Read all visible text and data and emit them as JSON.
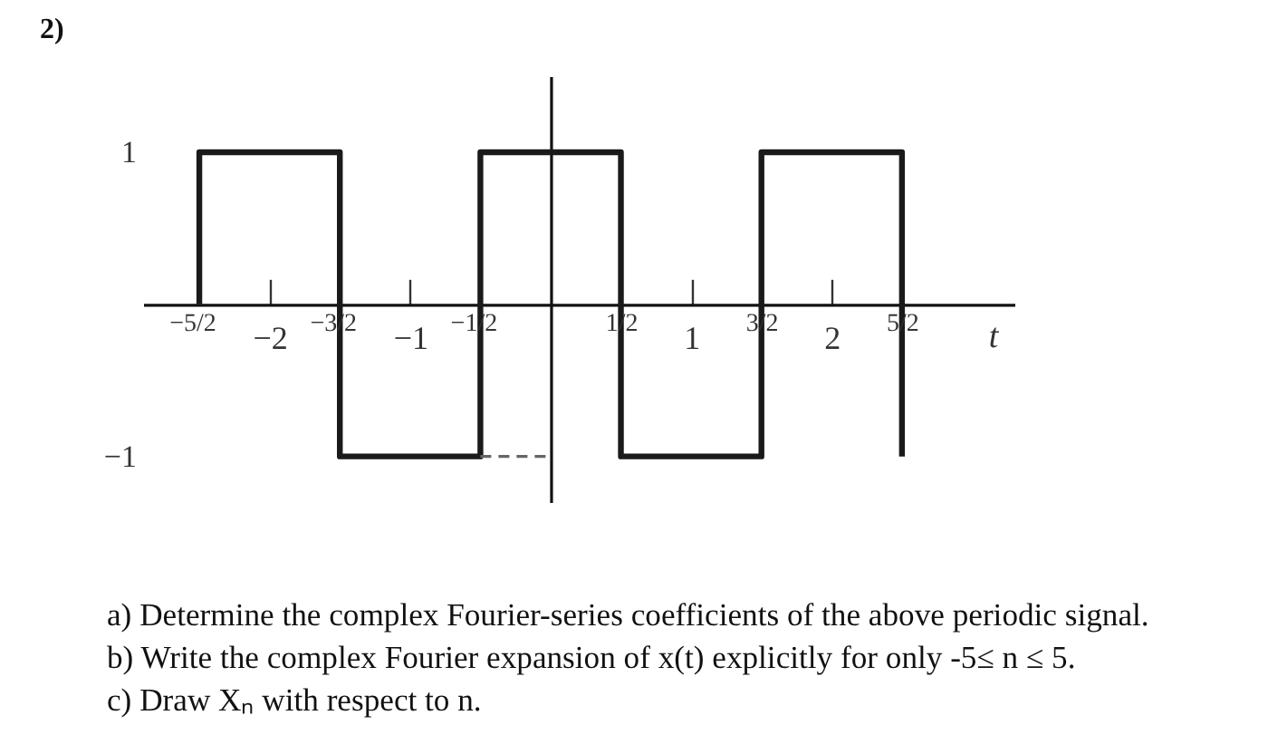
{
  "chart_data": {
    "type": "step",
    "title": "2)",
    "xlabel": "t",
    "xlim": [
      -2.9,
      3.3
    ],
    "ylim": [
      -1.3,
      1.5
    ],
    "xticks": [
      {
        "value": -2.5,
        "label": "−5/2"
      },
      {
        "value": -2,
        "label": "−2"
      },
      {
        "value": -1.5,
        "label": "−3/2"
      },
      {
        "value": -1,
        "label": "−1"
      },
      {
        "value": -0.5,
        "label": "−1/2"
      },
      {
        "value": 0.5,
        "label": "1/2"
      },
      1,
      {
        "value": 1.5,
        "label": "3/2"
      },
      2,
      {
        "value": 2.5,
        "label": "5/2"
      }
    ],
    "yticks": [
      1,
      {
        "value": -1,
        "label": "−1"
      }
    ],
    "series": [
      {
        "color": "#1a1a1a",
        "x": [
          -2.5,
          -2.5,
          -1.5,
          -0.5,
          0.5,
          1.5,
          2.5
        ],
        "values": [
          0,
          1,
          -1,
          1,
          -1,
          1,
          -1
        ]
      },
      {
        "type": "line",
        "color": "#666666",
        "line_style": "dashed",
        "x": [
          -0.5,
          0
        ],
        "values": [
          -1,
          -1
        ]
      }
    ],
    "annotations": [
      "a) Determine the complex Fourier-series coefficients of the above periodic signal.",
      "b) Write the complex Fourier expansion of x(t) explicitly for only -5≤ n ≤ 5.",
      "c) Draw Xₙ with respect to n."
    ]
  }
}
